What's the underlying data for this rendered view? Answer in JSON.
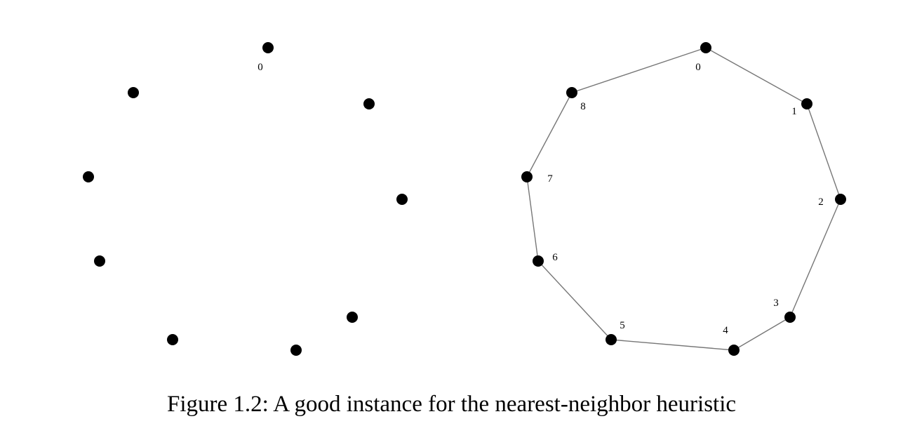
{
  "caption": "Figure 1.2: A good instance for the nearest-neighbor heuristic",
  "colors": {
    "node": "#000000",
    "edge": "#777777",
    "text": "#000000",
    "background": "#ffffff"
  },
  "left_panel": {
    "labels": [
      {
        "node": 0,
        "text": "0"
      }
    ]
  },
  "right_panel": {
    "labels": [
      {
        "node": 0,
        "text": "0"
      },
      {
        "node": 1,
        "text": "1"
      },
      {
        "node": 2,
        "text": "2"
      },
      {
        "node": 3,
        "text": "3"
      },
      {
        "node": 4,
        "text": "4"
      },
      {
        "node": 5,
        "text": "5"
      },
      {
        "node": 6,
        "text": "6"
      },
      {
        "node": 7,
        "text": "7"
      },
      {
        "node": 8,
        "text": "8"
      }
    ],
    "tour": [
      0,
      1,
      2,
      3,
      4,
      5,
      6,
      7,
      8,
      0
    ]
  }
}
